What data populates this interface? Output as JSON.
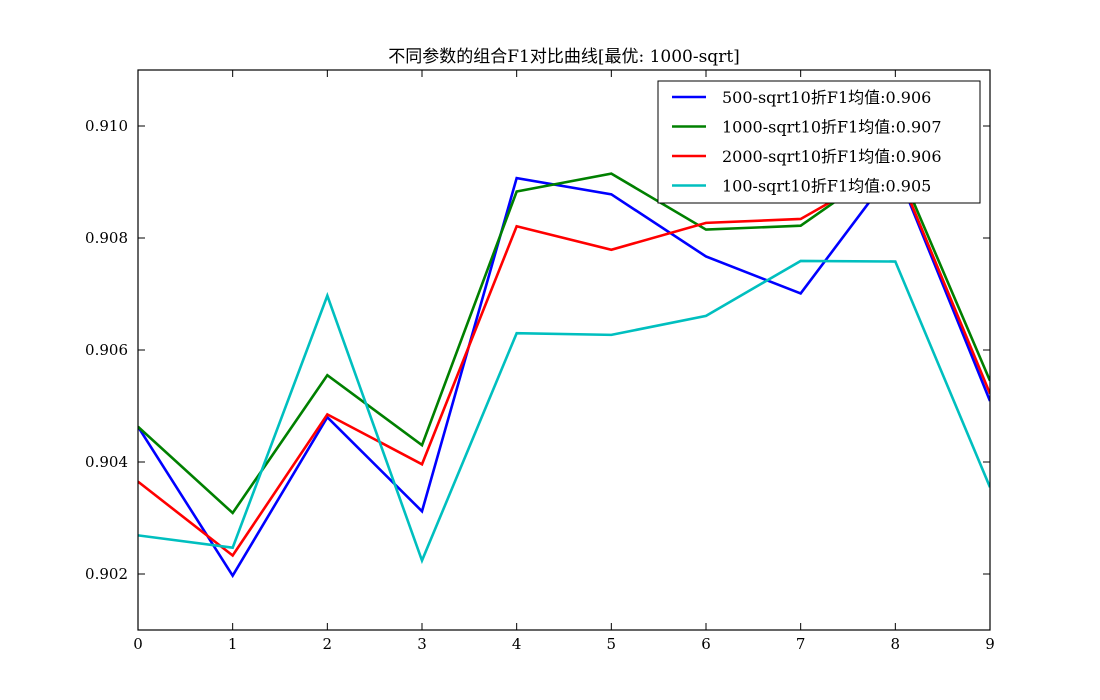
{
  "chart_data": {
    "type": "line",
    "title": "不同参数的组合F1对比曲线[最优: 1000-sqrt]",
    "xlabel": "",
    "ylabel": "",
    "x": [
      0,
      1,
      2,
      3,
      4,
      5,
      6,
      7,
      8,
      9
    ],
    "xlim": [
      0,
      9
    ],
    "ylim": [
      0.901,
      0.911
    ],
    "x_ticks": [
      0,
      1,
      2,
      3,
      4,
      5,
      6,
      7,
      8,
      9
    ],
    "x_tick_labels": [
      "0",
      "1",
      "2",
      "3",
      "4",
      "5",
      "6",
      "7",
      "8",
      "9"
    ],
    "y_ticks": [
      0.902,
      0.904,
      0.906,
      0.908,
      0.91
    ],
    "y_tick_labels": [
      "0.902",
      "0.904",
      "0.906",
      "0.908",
      "0.910"
    ],
    "grid": false,
    "legend_position": "top-right",
    "series": [
      {
        "name": "500-sqrt10折F1均值:0.906",
        "color": "#0000ff",
        "values": [
          0.90463,
          0.90197,
          0.9048,
          0.90312,
          0.90907,
          0.90878,
          0.90767,
          0.90701,
          0.90926,
          0.90509
        ]
      },
      {
        "name": "1000-sqrt10折F1均值:0.907",
        "color": "#008000",
        "values": [
          0.90463,
          0.90309,
          0.90555,
          0.9043,
          0.90883,
          0.90915,
          0.90815,
          0.90822,
          0.9094,
          0.90545
        ]
      },
      {
        "name": "2000-sqrt10折F1均值:0.906",
        "color": "#ff0000",
        "values": [
          0.90365,
          0.90233,
          0.90485,
          0.90396,
          0.90821,
          0.90779,
          0.90827,
          0.90834,
          0.9093,
          0.90522
        ]
      },
      {
        "name": "100-sqrt10折F1均值:0.905",
        "color": "#00bfbf",
        "values": [
          0.90269,
          0.90247,
          0.90697,
          0.90224,
          0.9063,
          0.90627,
          0.90661,
          0.90759,
          0.90758,
          0.90355
        ]
      }
    ]
  }
}
